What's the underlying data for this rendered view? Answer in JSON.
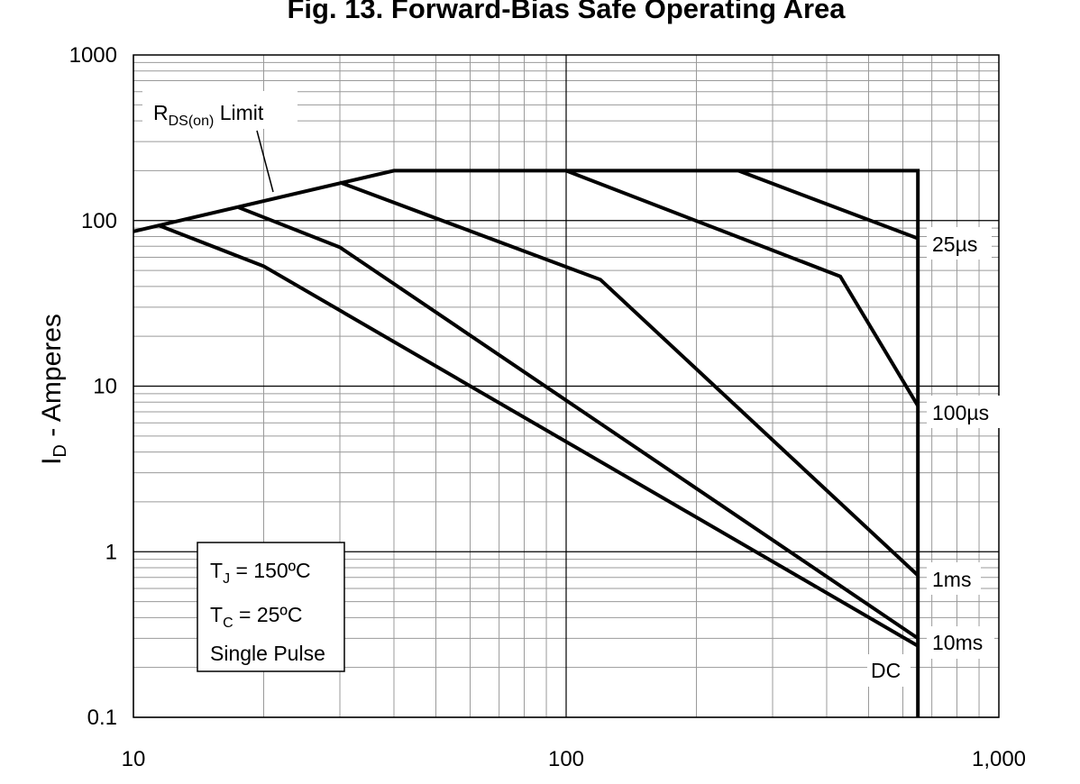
{
  "chart_data": {
    "type": "line",
    "title": "Fig. 13. Forward-Bias Safe Operating Area",
    "xlabel": "",
    "ylabel": {
      "main": "I",
      "sub": "D",
      "rest": " - Amperes"
    },
    "xscale": "log",
    "yscale": "log",
    "xlim": [
      10,
      1000
    ],
    "ylim": [
      0.1,
      1000
    ],
    "grid": true,
    "x_ticks": [
      {
        "value": 10,
        "label": "10"
      },
      {
        "value": 100,
        "label": "100"
      },
      {
        "value": 1000,
        "label": "1,000"
      }
    ],
    "y_ticks": [
      {
        "value": 1000,
        "label": "1000"
      },
      {
        "value": 100,
        "label": "100"
      },
      {
        "value": 10,
        "label": "10"
      },
      {
        "value": 1,
        "label": "1"
      },
      {
        "value": 0.1,
        "label": "0.1"
      }
    ],
    "series": [
      {
        "name": "25µs",
        "points": [
          [
            10,
            86
          ],
          [
            40,
            200
          ],
          [
            650,
            200
          ],
          [
            650,
            0.1
          ]
        ]
      },
      {
        "name": "25µs",
        "points": [
          [
            250,
            200
          ],
          [
            650,
            78
          ]
        ]
      },
      {
        "name": "100µs",
        "points": [
          [
            100,
            200
          ],
          [
            430,
            46
          ],
          [
            650,
            7.6
          ]
        ]
      },
      {
        "name": "1ms",
        "points": [
          [
            30,
            170
          ],
          [
            120,
            44
          ],
          [
            650,
            0.72
          ]
        ]
      },
      {
        "name": "10ms",
        "points": [
          [
            17.5,
            120
          ],
          [
            30,
            69
          ],
          [
            650,
            0.3
          ]
        ]
      },
      {
        "name": "DC",
        "points": [
          [
            11.5,
            93
          ],
          [
            20,
            53
          ],
          [
            650,
            0.27
          ]
        ]
      }
    ],
    "annotations": {
      "rds_limit": {
        "main": "R",
        "sub": "DS(on)",
        "rest": " Limit"
      },
      "conditions": {
        "line1": {
          "main": "T",
          "sub": "J",
          "rest": " = 150ºC"
        },
        "line2": {
          "main": "T",
          "sub": "C",
          "rest": " = 25ºC"
        },
        "line3": "Single Pulse"
      }
    }
  }
}
